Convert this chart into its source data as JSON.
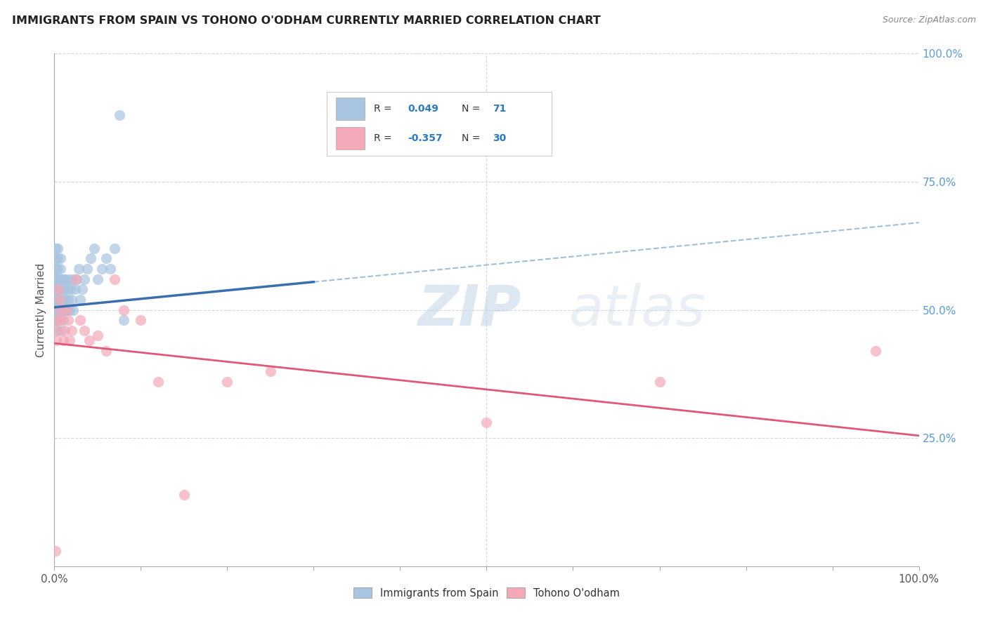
{
  "title": "IMMIGRANTS FROM SPAIN VS TOHONO O'ODHAM CURRENTLY MARRIED CORRELATION CHART",
  "source": "Source: ZipAtlas.com",
  "ylabel": "Currently Married",
  "right_yticks": [
    "100.0%",
    "75.0%",
    "50.0%",
    "25.0%"
  ],
  "right_ytick_vals": [
    1.0,
    0.75,
    0.5,
    0.25
  ],
  "legend_blue_label": "Immigrants from Spain",
  "legend_pink_label": "Tohono O'odham",
  "blue_color": "#a8c4e0",
  "pink_color": "#f4a8b8",
  "blue_line_color": "#3a6faf",
  "pink_line_color": "#e05878",
  "dashed_line_color": "#a0bfd8",
  "watermark_zip": "ZIP",
  "watermark_atlas": "atlas",
  "background_color": "#ffffff",
  "grid_color": "#d0d8e0",
  "blue_scatter_x": [
    0.001,
    0.001,
    0.001,
    0.001,
    0.001,
    0.001,
    0.001,
    0.002,
    0.002,
    0.002,
    0.002,
    0.002,
    0.002,
    0.003,
    0.003,
    0.003,
    0.003,
    0.003,
    0.004,
    0.004,
    0.004,
    0.004,
    0.005,
    0.005,
    0.005,
    0.005,
    0.006,
    0.006,
    0.006,
    0.007,
    0.007,
    0.007,
    0.008,
    0.008,
    0.008,
    0.009,
    0.009,
    0.01,
    0.01,
    0.01,
    0.011,
    0.011,
    0.012,
    0.012,
    0.013,
    0.013,
    0.014,
    0.015,
    0.016,
    0.017,
    0.018,
    0.019,
    0.02,
    0.021,
    0.022,
    0.024,
    0.026,
    0.028,
    0.03,
    0.032,
    0.035,
    0.038,
    0.042,
    0.046,
    0.05,
    0.055,
    0.06,
    0.065,
    0.07,
    0.075,
    0.08
  ],
  "blue_scatter_y": [
    0.5,
    0.52,
    0.54,
    0.56,
    0.58,
    0.6,
    0.62,
    0.48,
    0.5,
    0.52,
    0.54,
    0.56,
    0.58,
    0.46,
    0.48,
    0.5,
    0.52,
    0.54,
    0.56,
    0.58,
    0.6,
    0.62,
    0.5,
    0.52,
    0.54,
    0.56,
    0.48,
    0.5,
    0.52,
    0.56,
    0.58,
    0.6,
    0.46,
    0.5,
    0.54,
    0.52,
    0.56,
    0.48,
    0.5,
    0.54,
    0.52,
    0.56,
    0.5,
    0.54,
    0.52,
    0.56,
    0.5,
    0.54,
    0.52,
    0.56,
    0.5,
    0.54,
    0.52,
    0.56,
    0.5,
    0.54,
    0.56,
    0.58,
    0.52,
    0.54,
    0.56,
    0.58,
    0.6,
    0.62,
    0.56,
    0.58,
    0.6,
    0.58,
    0.62,
    0.88,
    0.48
  ],
  "pink_scatter_x": [
    0.001,
    0.002,
    0.003,
    0.004,
    0.005,
    0.006,
    0.007,
    0.008,
    0.01,
    0.012,
    0.014,
    0.016,
    0.018,
    0.02,
    0.025,
    0.03,
    0.035,
    0.04,
    0.05,
    0.06,
    0.07,
    0.08,
    0.1,
    0.12,
    0.15,
    0.2,
    0.25,
    0.5,
    0.7,
    0.95
  ],
  "pink_scatter_y": [
    0.03,
    0.44,
    0.46,
    0.48,
    0.54,
    0.52,
    0.5,
    0.48,
    0.44,
    0.46,
    0.5,
    0.48,
    0.44,
    0.46,
    0.56,
    0.48,
    0.46,
    0.44,
    0.45,
    0.42,
    0.56,
    0.5,
    0.48,
    0.36,
    0.14,
    0.36,
    0.38,
    0.28,
    0.36,
    0.42
  ],
  "xlim": [
    0.0,
    1.0
  ],
  "ylim": [
    0.0,
    1.0
  ],
  "blue_R": 0.049,
  "blue_N": 71,
  "pink_R": -0.357,
  "pink_N": 30
}
